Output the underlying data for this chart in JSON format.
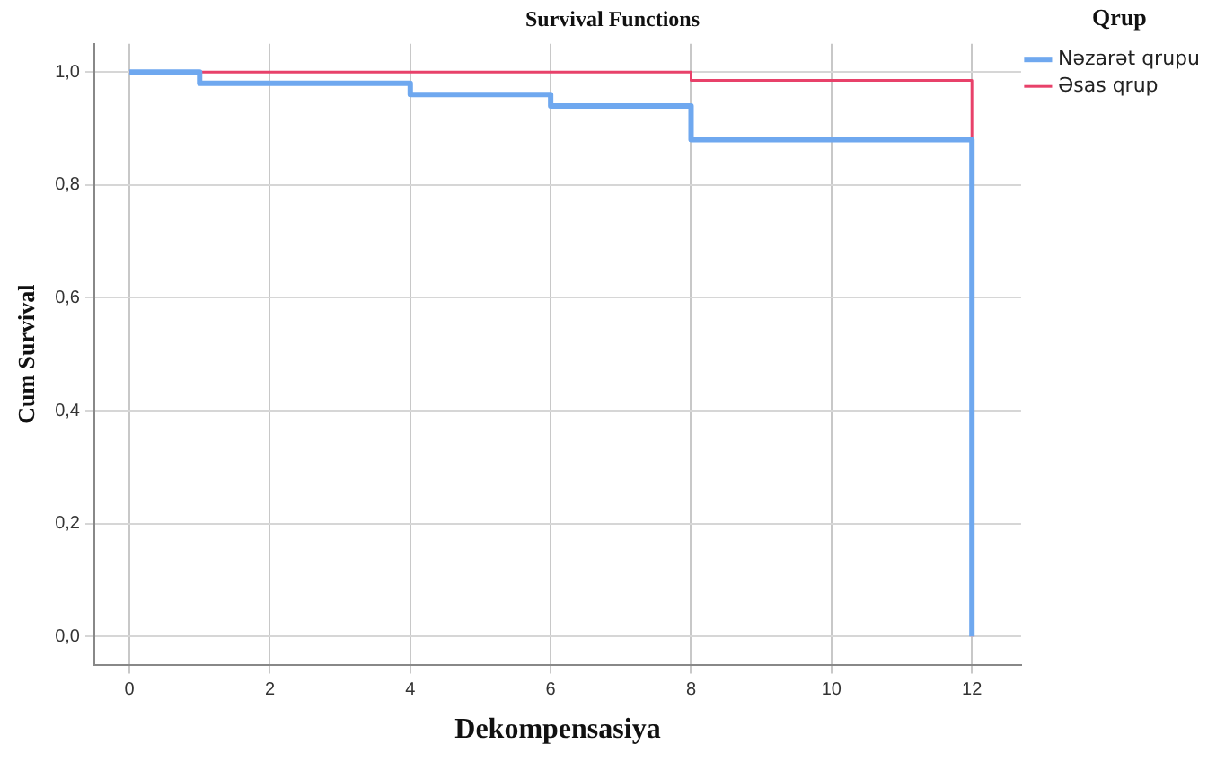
{
  "chart_data": {
    "type": "step",
    "title": "Survival Functions",
    "xlabel": "Dekompensasiya",
    "ylabel": "Cum Survival",
    "legend_title": "Qrup",
    "legend": "top right",
    "grid": true,
    "xlim": [
      -0.5,
      12.7
    ],
    "xticks": [
      0,
      2,
      4,
      6,
      8,
      10,
      12
    ],
    "ylim": [
      -0.05,
      1.05
    ],
    "yticks": [
      {
        "value": 0,
        "label": "0,0"
      },
      {
        "value": 0.2,
        "label": "0,2"
      },
      {
        "value": 0.4,
        "label": "0,4"
      },
      {
        "value": 0.6,
        "label": "0,6"
      },
      {
        "value": 0.8,
        "label": "0,8"
      },
      {
        "value": 1,
        "label": "1,0"
      }
    ],
    "series": [
      {
        "name": "Nəzarət qrupu",
        "color": "#6fa8ef",
        "x": [
          0,
          1,
          4,
          6,
          8,
          12
        ],
        "values": [
          1,
          0.98,
          0.96,
          0.94,
          0.88,
          0
        ]
      },
      {
        "name": "Əsas qrup",
        "color": "#e8416a",
        "x": [
          0,
          8,
          12
        ],
        "values": [
          1,
          0.985,
          0
        ]
      }
    ]
  }
}
